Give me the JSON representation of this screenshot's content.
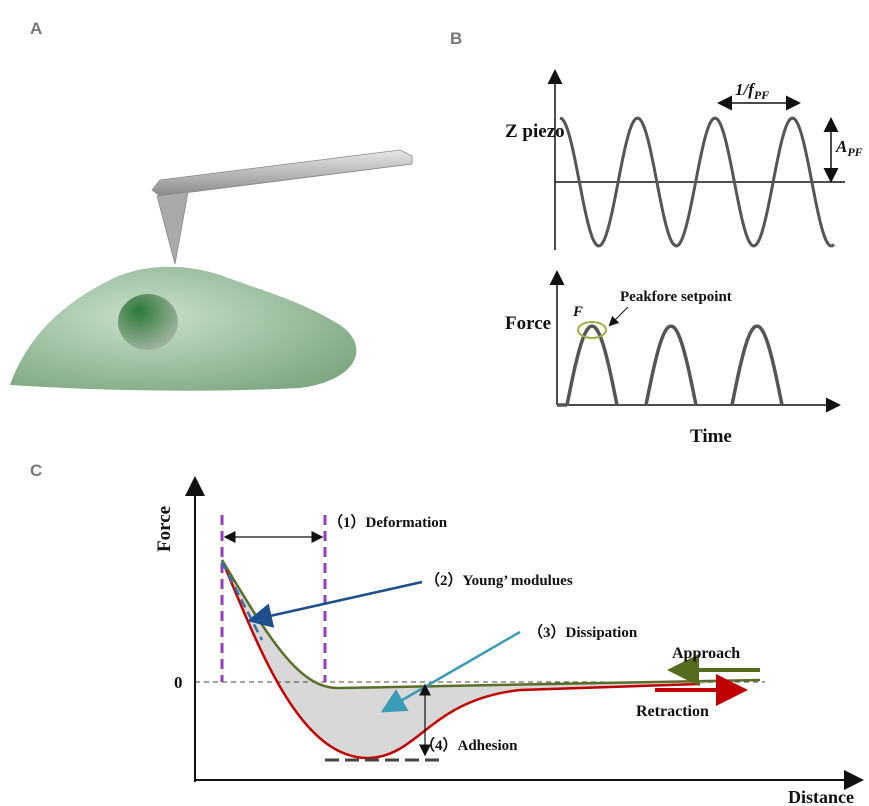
{
  "panel_a": {
    "label": "A"
  },
  "panel_b": {
    "label": "B",
    "z_axis_label": "Z piezo",
    "period_label": {
      "text": "1/f",
      "subscript": "PF"
    },
    "amplitude_label": {
      "text": "A",
      "subscript": "PF"
    },
    "force_axis_label": "Force",
    "setpoint_label": "Peakfore setpoint",
    "peak_label": "F",
    "time_axis_label": "Time"
  },
  "panel_c": {
    "label": "C",
    "y_axis_label": "Force",
    "zero_label": "0",
    "annotations": [
      "（1）Deformation",
      "（2）Young’ modulues",
      "（3）Dissipation",
      "（4）Adhesion"
    ],
    "approach_label": "Approach",
    "retraction_label": "Retraction",
    "x_axis_label": "Distance"
  }
}
